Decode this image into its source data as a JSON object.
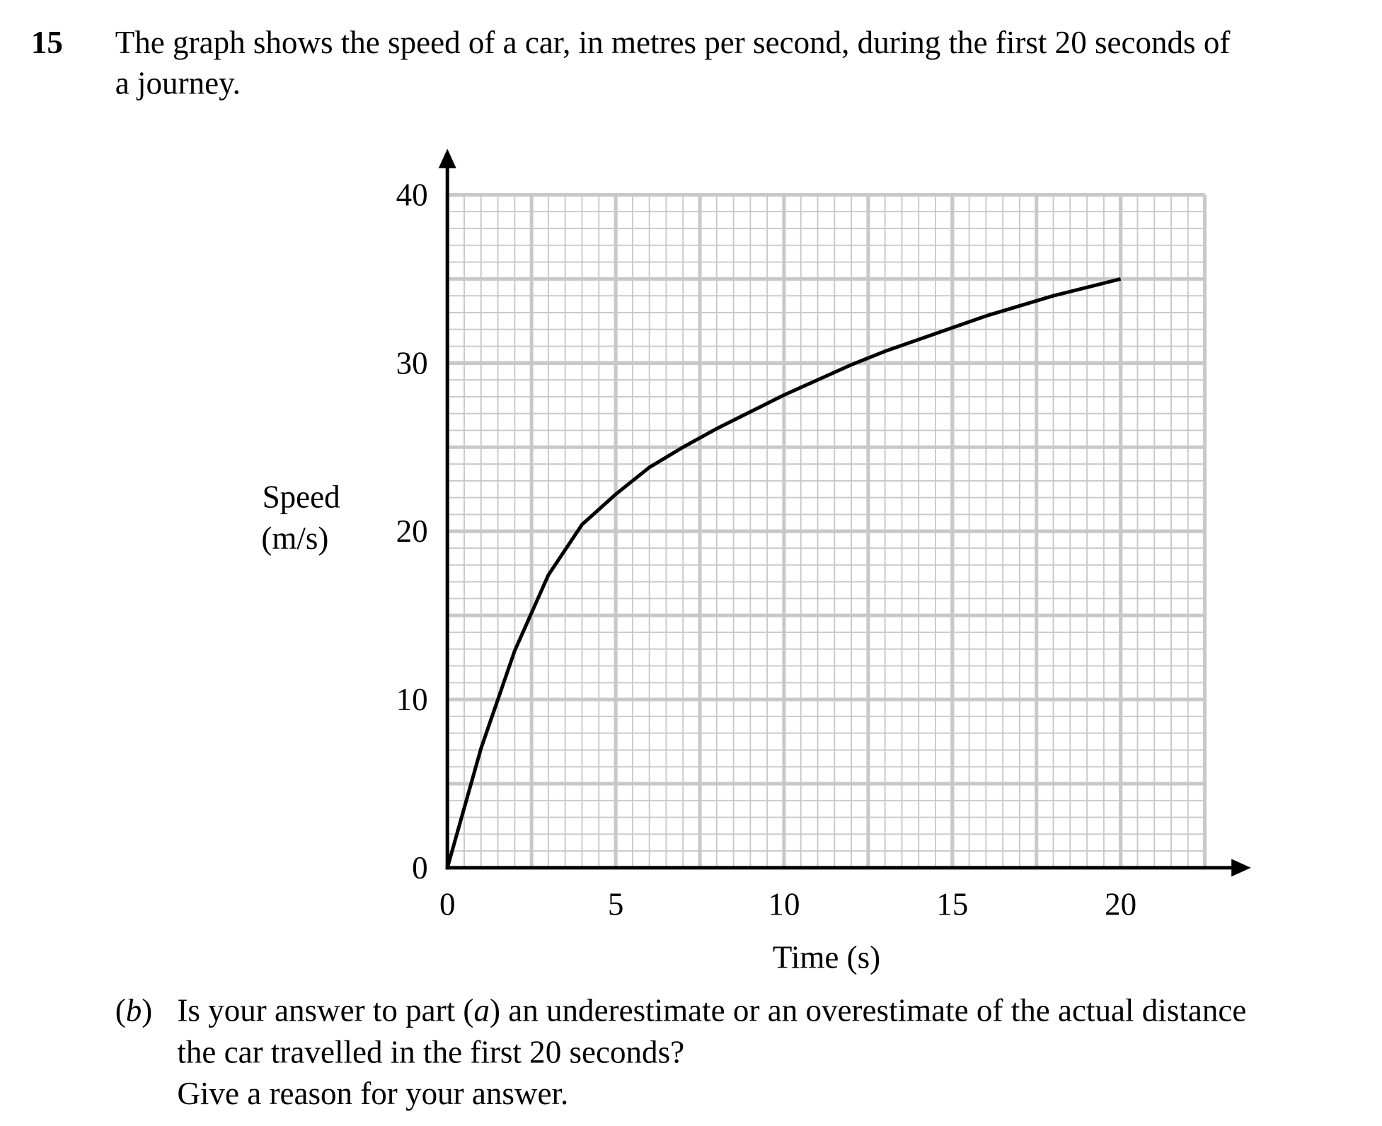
{
  "question_number": "15",
  "question_lines": [
    "The graph shows the speed of a car, in metres per second, during the first 20 seconds of",
    "a journey."
  ],
  "chart_data": {
    "type": "line",
    "y_label_lines": [
      "Speed",
      "(m/s)"
    ],
    "x_label": "Time (s)",
    "x": [
      0,
      1,
      2,
      3,
      4,
      5,
      6,
      7,
      8,
      9,
      10,
      11,
      12,
      13,
      14,
      15,
      16,
      17,
      18,
      19,
      20
    ],
    "series": [
      {
        "name": "speed",
        "color": "#000000",
        "values": [
          0,
          7.1,
          12.9,
          17.4,
          20.4,
          22.2,
          23.8,
          25,
          26.1,
          27.1,
          28.1,
          29,
          29.9,
          30.7,
          31.4,
          32.1,
          32.8,
          33.4,
          34,
          34.5,
          35
        ]
      }
    ],
    "xlim": [
      0,
      22.5
    ],
    "ylim": [
      0,
      40
    ],
    "xticks": [
      0,
      5,
      10,
      15,
      20
    ],
    "yticks": [
      0,
      10,
      20,
      30,
      40
    ],
    "grid": true
  },
  "part_b": {
    "label": [
      "(",
      "b",
      ")"
    ],
    "lines": [
      [
        "Is your answer to part (",
        "a",
        ") an underestimate or an overestimate of the actual distance"
      ],
      [
        "the car travelled in the first 20 seconds?"
      ],
      [
        "Give a reason for your answer."
      ]
    ]
  }
}
